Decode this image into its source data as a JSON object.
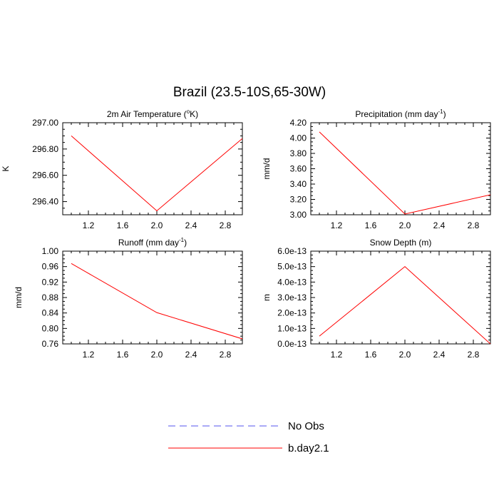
{
  "figure_title": "Brazil (23.5-10S,65-30W)",
  "series_colors": {
    "No Obs": "#5555ee",
    "b.day2.1": "#ff0000"
  },
  "legend": {
    "placement": "bottom-center",
    "items": [
      {
        "name": "No Obs",
        "style": "dashed",
        "color": "#5555ee"
      },
      {
        "name": "b.day2.1",
        "style": "solid",
        "color": "#ff0000"
      }
    ]
  },
  "chart_data": [
    {
      "type": "line",
      "title": "2m Air Temperature (",
      "title_sup": "o",
      "title_suffix": "K)",
      "xlabel": "",
      "ylabel": "K",
      "xlim": [
        0.9,
        3.0
      ],
      "ylim": [
        296.3,
        297.0
      ],
      "xticks": [
        1.2,
        1.6,
        2.0,
        2.4,
        2.8
      ],
      "xtick_labels": [
        "1.2",
        "1.6",
        "2.0",
        "2.4",
        "2.8"
      ],
      "yticks": [
        296.4,
        296.6,
        296.8,
        297.0
      ],
      "ytick_labels": [
        "296.40",
        "296.60",
        "296.80",
        "297.00"
      ],
      "ylabel_side": "left",
      "x": [
        1.0,
        2.0,
        3.0
      ],
      "series": [
        {
          "name": "b.day2.1",
          "values": [
            296.9,
            296.33,
            296.88
          ]
        }
      ]
    },
    {
      "type": "line",
      "title": "Precipitation (mm day",
      "title_sup": "-1",
      "title_suffix": ")",
      "xlabel": "",
      "ylabel": "mm/d",
      "xlim": [
        0.9,
        3.0
      ],
      "ylim": [
        3.0,
        4.2
      ],
      "xticks": [
        1.2,
        1.6,
        2.0,
        2.4,
        2.8
      ],
      "xtick_labels": [
        "1.2",
        "1.6",
        "2.0",
        "2.4",
        "2.8"
      ],
      "yticks": [
        3.0,
        3.2,
        3.4,
        3.6,
        3.8,
        4.0,
        4.2
      ],
      "ytick_labels": [
        "3.00",
        "3.20",
        "3.40",
        "3.60",
        "3.80",
        "4.00",
        "4.20"
      ],
      "x": [
        1.0,
        2.0,
        3.0
      ],
      "series": [
        {
          "name": "b.day2.1",
          "values": [
            4.08,
            3.01,
            3.26
          ]
        }
      ]
    },
    {
      "type": "line",
      "title": "Runoff (mm day",
      "title_sup": "-1",
      "title_suffix": ")",
      "xlabel": "",
      "ylabel": "mm/d",
      "xlim": [
        0.9,
        3.0
      ],
      "ylim": [
        0.76,
        1.0
      ],
      "xticks": [
        1.2,
        1.6,
        2.0,
        2.4,
        2.8
      ],
      "xtick_labels": [
        "1.2",
        "1.6",
        "2.0",
        "2.4",
        "2.8"
      ],
      "yticks": [
        0.76,
        0.8,
        0.84,
        0.88,
        0.92,
        0.96,
        1.0
      ],
      "ytick_labels": [
        "0.76",
        "0.80",
        "0.84",
        "0.88",
        "0.92",
        "0.96",
        "1.00"
      ],
      "x": [
        1.0,
        2.0,
        3.0
      ],
      "series": [
        {
          "name": "b.day2.1",
          "values": [
            0.968,
            0.841,
            0.773
          ]
        }
      ]
    },
    {
      "type": "line",
      "title": "Snow Depth (m)",
      "title_sup": "",
      "title_suffix": "",
      "xlabel": "",
      "ylabel": "m",
      "xlim": [
        0.9,
        3.0
      ],
      "ylim": [
        0.0,
        6e-13
      ],
      "xticks": [
        1.2,
        1.6,
        2.0,
        2.4,
        2.8
      ],
      "xtick_labels": [
        "1.2",
        "1.6",
        "2.0",
        "2.4",
        "2.8"
      ],
      "yticks": [
        0.0,
        1e-13,
        2e-13,
        3e-13,
        4e-13,
        5e-13,
        6e-13
      ],
      "ytick_labels": [
        "0.0e-13",
        "1.0e-13",
        "2.0e-13",
        "3.0e-13",
        "4.0e-13",
        "5.0e-13",
        "6.0e-13"
      ],
      "x": [
        1.0,
        2.0,
        3.0
      ],
      "series": [
        {
          "name": "b.day2.1",
          "values": [
            5e-14,
            5e-13,
            0.0
          ]
        }
      ]
    }
  ]
}
